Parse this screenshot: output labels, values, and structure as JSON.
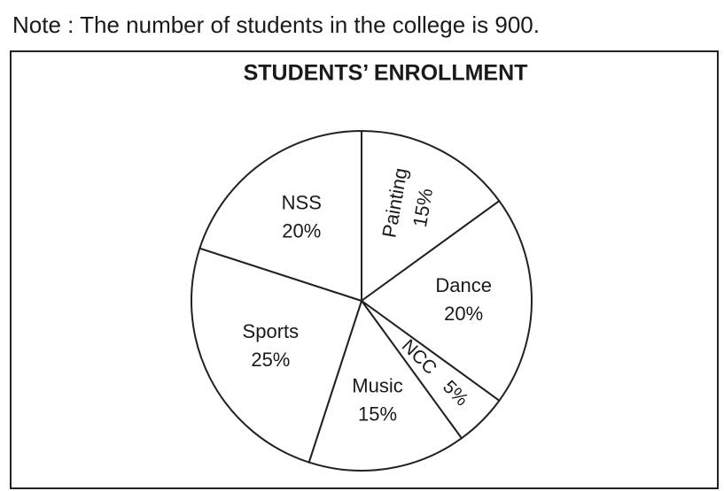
{
  "note": "Note : The number of students in the college is 900.",
  "chart_data": {
    "type": "pie",
    "title": "STUDENTS’ ENROLLMENT",
    "categories": [
      "Painting",
      "Dance",
      "NCC",
      "Music",
      "Sports",
      "NSS"
    ],
    "values": [
      15,
      20,
      5,
      15,
      25,
      20
    ],
    "value_labels": [
      "15%",
      "20%",
      "5%",
      "15%",
      "25%",
      "20%"
    ],
    "color": "#ffffff"
  }
}
